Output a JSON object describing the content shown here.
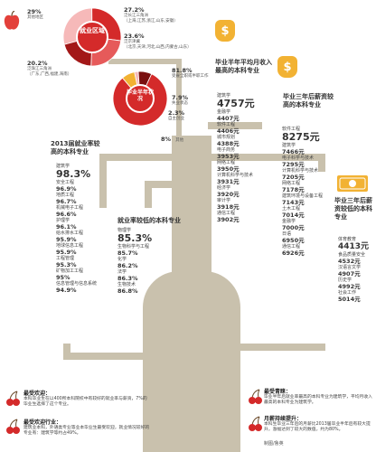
{
  "pie1": {
    "center_label": "就业区域",
    "slices": [
      {
        "pct": 29.0,
        "pct_label": "29%",
        "name": "其他地区",
        "color": "#f6b9b9"
      },
      {
        "pct": 27.2,
        "pct_label": "27.2%",
        "name": "泛长江三角洲",
        "desc": "（上海,江苏,浙江,山东,安徽）",
        "color": "#d42a2a"
      },
      {
        "pct": 23.6,
        "pct_label": "23.6%",
        "name": "泛京津冀",
        "desc": "（北京,天津,河北,山西,内蒙古,山东）",
        "color": "#e65a5a"
      },
      {
        "pct": 20.2,
        "pct_label": "20.2%",
        "name": "泛珠江三角洲",
        "desc": "（广东,广西,福建,海南）",
        "color": "#a31818"
      }
    ]
  },
  "pie2": {
    "center_label": "毕业半年状况",
    "slices": [
      {
        "pct": 81.8,
        "pct_label": "81.8%",
        "name": "受雇全职或半职工作",
        "color": "#d42a2a"
      },
      {
        "pct": 7.9,
        "pct_label": "7.9%",
        "name": "失业状态",
        "color": "#f2b233"
      },
      {
        "pct": 2.3,
        "pct_label": "2.3%",
        "name": "自主创业",
        "color": "#f6b9b9"
      },
      {
        "pct": 8.0,
        "pct_label": "8%",
        "name": "其他",
        "color": "#7a1010"
      }
    ]
  },
  "employment": {
    "title": "2013届就业率较高的本科专业",
    "items": [
      {
        "name": "建筑学",
        "value": "98.3%"
      },
      {
        "name": "安全工程",
        "value": "96.9%"
      },
      {
        "name": "地质工程",
        "value": "96.7%"
      },
      {
        "name": "机械电子工程",
        "value": "96.6%"
      },
      {
        "name": "护理学",
        "value": "96.1%"
      },
      {
        "name": "给水排水工程",
        "value": "95.9%"
      },
      {
        "name": "地球信息工程",
        "value": "95.9%"
      },
      {
        "name": "工程管理",
        "value": "95.3%"
      },
      {
        "name": "矿物加工工程",
        "value": "95%"
      },
      {
        "name": "信息管理与信息系统",
        "value": "94.9%"
      }
    ]
  },
  "low_employment": {
    "title": "就业率较低的本科专业",
    "items": [
      {
        "name": "物理学",
        "value": "85.3%"
      },
      {
        "name": "生物科学与工程",
        "value": "85.7%"
      },
      {
        "name": "化学",
        "value": "86.2%"
      },
      {
        "name": "法学",
        "value": "86.3%"
      },
      {
        "name": "生物技术",
        "value": "86.8%"
      }
    ]
  },
  "high_income_half": {
    "title": "毕业半年平均月收入最高的本科专业",
    "items": [
      {
        "name": "建筑学",
        "value": "4757元"
      },
      {
        "name": "金融学",
        "value": "4407元"
      },
      {
        "name": "软件工程",
        "value": "4406元"
      },
      {
        "name": "城市规划",
        "value": "4388元"
      },
      {
        "name": "电子商务",
        "value": "3953元"
      },
      {
        "name": "网络工程",
        "value": "3950元"
      },
      {
        "name": "计算机科学与技术",
        "value": "3931元"
      },
      {
        "name": "经济学",
        "value": "3920元"
      },
      {
        "name": "审计学",
        "value": "3918元"
      },
      {
        "name": "通信工程",
        "value": "3902元"
      }
    ]
  },
  "high_income_3yr": {
    "title": "毕业三年后薪资较高的本科专业",
    "items": [
      {
        "name": "软件工程",
        "value": "8275元"
      },
      {
        "name": "建筑学",
        "value": "7466元"
      },
      {
        "name": "电子科学与技术",
        "value": "7295元"
      },
      {
        "name": "计算机科学与技术",
        "value": "7205元"
      },
      {
        "name": "网络工程",
        "value": "7178元"
      },
      {
        "name": "建筑环境与设备工程",
        "value": "7143元"
      },
      {
        "name": "土木工程",
        "value": "7014元"
      },
      {
        "name": "金融学",
        "value": "7000元"
      },
      {
        "name": "日语",
        "value": "6950元"
      },
      {
        "name": "通信工程",
        "value": "6926元"
      }
    ]
  },
  "low_income_3yr": {
    "title": "毕业三年后薪资较低的本科专业",
    "items": [
      {
        "name": "体育教育",
        "value": "4413元"
      },
      {
        "name": "食品质量安全",
        "value": "4532元"
      },
      {
        "name": "汉语言文学",
        "value": "4907元"
      },
      {
        "name": "历史学",
        "value": "4992元"
      },
      {
        "name": "社会工作",
        "value": "5014元"
      }
    ]
  },
  "notes": [
    {
      "title": "最受欢迎：",
      "body": "本科毕业生在以400所本科院校中有较好的就业率与薪资，7%的毕业生选择了这个专业。"
    },
    {
      "title": "最受欢迎行业：",
      "body": "建筑业本科，外语类专业等业本毕业生最受欢迎，就业情况较好的专业有：建筑学等约占49%。"
    },
    {
      "title": "最受青睐：",
      "body": "毕业半年后就业率最高的本科专业为建筑学，平均月收入最高的本科专业为建筑学。"
    },
    {
      "title": "月薪持续提升：",
      "body": "本科生毕业三年后的月薪比2013届毕业半年后有较大提升，涨幅达到了较大的数值，约为80%。"
    }
  ],
  "credit": "制图/鲁英",
  "icons": {
    "dollar": "dollar-bag-icon",
    "apple": "apple-icon",
    "cherry": "cherry-icon",
    "banknote": "banknote-icon"
  }
}
